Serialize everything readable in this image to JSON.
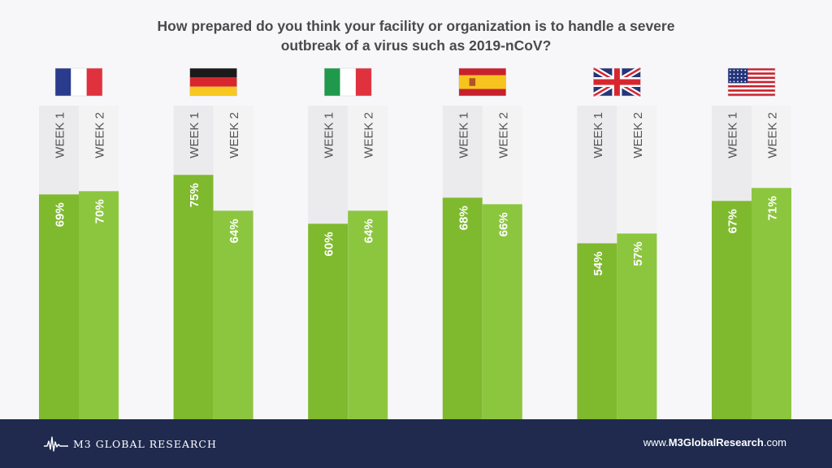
{
  "title": {
    "line1": "How prepared do you think your facility or organization is to handle a severe",
    "line2": "outbreak of a virus such as 2019-nCoV?"
  },
  "colors": {
    "week1_bar": "#7fb92e",
    "week2_bar": "#8cc63f",
    "week1_track": "#ebebed",
    "week2_track": "#f3f3f4",
    "label_dark": "#555555",
    "value_text": "#ffffff",
    "footer_bg": "#1f2a4e"
  },
  "chart_data": {
    "type": "bar",
    "categories": [
      "France",
      "Germany",
      "Italy",
      "Spain",
      "United Kingdom",
      "United States"
    ],
    "category_icons": [
      "france-flag-icon",
      "germany-flag-icon",
      "italy-flag-icon",
      "spain-flag-icon",
      "uk-flag-icon",
      "usa-flag-icon"
    ],
    "series": [
      {
        "name": "WEEK 1",
        "values": [
          69,
          75,
          60,
          68,
          54,
          67
        ]
      },
      {
        "name": "WEEK 2",
        "values": [
          70,
          64,
          64,
          66,
          57,
          71
        ]
      }
    ],
    "value_suffix": "%",
    "ylim": [
      0,
      100
    ],
    "grid": false,
    "legend": "none"
  },
  "footer": {
    "brand": "M3 GLOBAL RESEARCH",
    "logo_icon": "m3-pulse-logo-icon",
    "website_prefix": "www.",
    "website_bold": "M3GlobalResearch",
    "website_suffix": ".com"
  }
}
